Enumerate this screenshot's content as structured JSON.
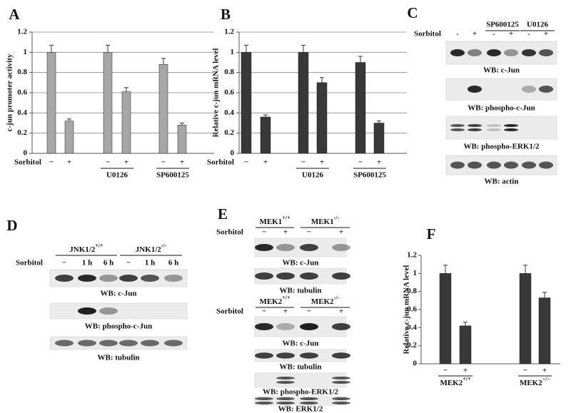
{
  "chart_data": [
    {
      "type": "bar",
      "panel": "A",
      "y_label": "c-jun promoter activity",
      "row_label": "Sorbitol",
      "categories": [
        "−",
        "+",
        "−",
        "+",
        "−",
        "+"
      ],
      "group_labels": [
        "U0126",
        "SP600125"
      ],
      "values": [
        1.0,
        0.32,
        1.0,
        0.61,
        0.88,
        0.28
      ],
      "errors": [
        0.07,
        0.02,
        0.07,
        0.04,
        0.06,
        0.02
      ],
      "color": "#a6a6a6",
      "ylim": [
        0,
        1.2
      ],
      "yticks": [
        0,
        0.2,
        0.4,
        0.6,
        0.8,
        1,
        1.2
      ],
      "grid": true
    },
    {
      "type": "bar",
      "panel": "B",
      "y_label": "Relative c-jun mRNA level",
      "row_label": "Sorbitol",
      "categories": [
        "−",
        "+",
        "−",
        "+",
        "−",
        "+"
      ],
      "group_labels": [
        "U0126",
        "SP600125"
      ],
      "values": [
        1.0,
        0.36,
        1.0,
        0.7,
        0.9,
        0.3
      ],
      "errors": [
        0.07,
        0.02,
        0.07,
        0.05,
        0.06,
        0.02
      ],
      "color": "#383838",
      "ylim": [
        0,
        1.2
      ],
      "yticks": [
        0,
        0.2,
        0.4,
        0.6,
        0.8,
        1,
        1.2
      ],
      "grid": true
    },
    {
      "type": "bar",
      "panel": "F",
      "y_label": "Relative c-jun mRNA level",
      "categories": [
        "−",
        "+",
        "−",
        "+"
      ],
      "group_labels": [
        {
          "name": "MEK2",
          "sup": "+/+"
        },
        {
          "name": "MEK2",
          "sup": "−/−"
        }
      ],
      "values": [
        1.0,
        0.42,
        1.0,
        0.73
      ],
      "errors": [
        0.09,
        0.04,
        0.09,
        0.06
      ],
      "color": "#383838",
      "ylim": [
        0,
        1.2
      ],
      "yticks": [
        0,
        0.2,
        0.4,
        0.6,
        0.8,
        1,
        1.2
      ],
      "grid": false
    }
  ],
  "blots": [
    {
      "panel": "C",
      "row_label": "Sorbitol",
      "groups": [
        "SP600125",
        "U0126"
      ],
      "lanes": [
        "-",
        "+",
        "-",
        "+",
        "-",
        "+"
      ],
      "captions": [
        "WB: c-Jun",
        "WB: phospho-c-Jun",
        "WB: phospho-ERK1/2",
        "WB: actin"
      ]
    },
    {
      "panel": "D",
      "row_label": "Sorbitol",
      "groups": [
        {
          "name": "JNK1/2",
          "sup": "+/+"
        },
        {
          "name": "JNK1/2",
          "sup": "-/-"
        }
      ],
      "lanes": [
        "−",
        "1 h",
        "6 h",
        "−",
        "1 h",
        "6 h"
      ],
      "captions": [
        "WB: c-Jun",
        "WB: phospho-c-Jun",
        "WB: tubulin"
      ]
    },
    {
      "panel": "E",
      "row_label": "Sorbitol",
      "groups": [
        {
          "name": "MEK1",
          "sup": "+/+"
        },
        {
          "name": "MEK1",
          "sup": "-/-"
        }
      ],
      "lanes": [
        "−",
        "+",
        "−",
        "+"
      ],
      "captions": [
        "WB: c-Jun",
        "WB: tubulin"
      ]
    },
    {
      "row_label": "Sorbitol",
      "groups": [
        {
          "name": "MEK2",
          "sup": "+/+"
        },
        {
          "name": "MEK2",
          "sup": "-/-"
        }
      ],
      "lanes": [
        "−",
        "+",
        "−",
        "+"
      ],
      "captions": [
        "WB: c-Jun",
        "WB: tubulin",
        "WB: phospho-ERK1/2",
        "WB: ERK1/2"
      ]
    }
  ]
}
